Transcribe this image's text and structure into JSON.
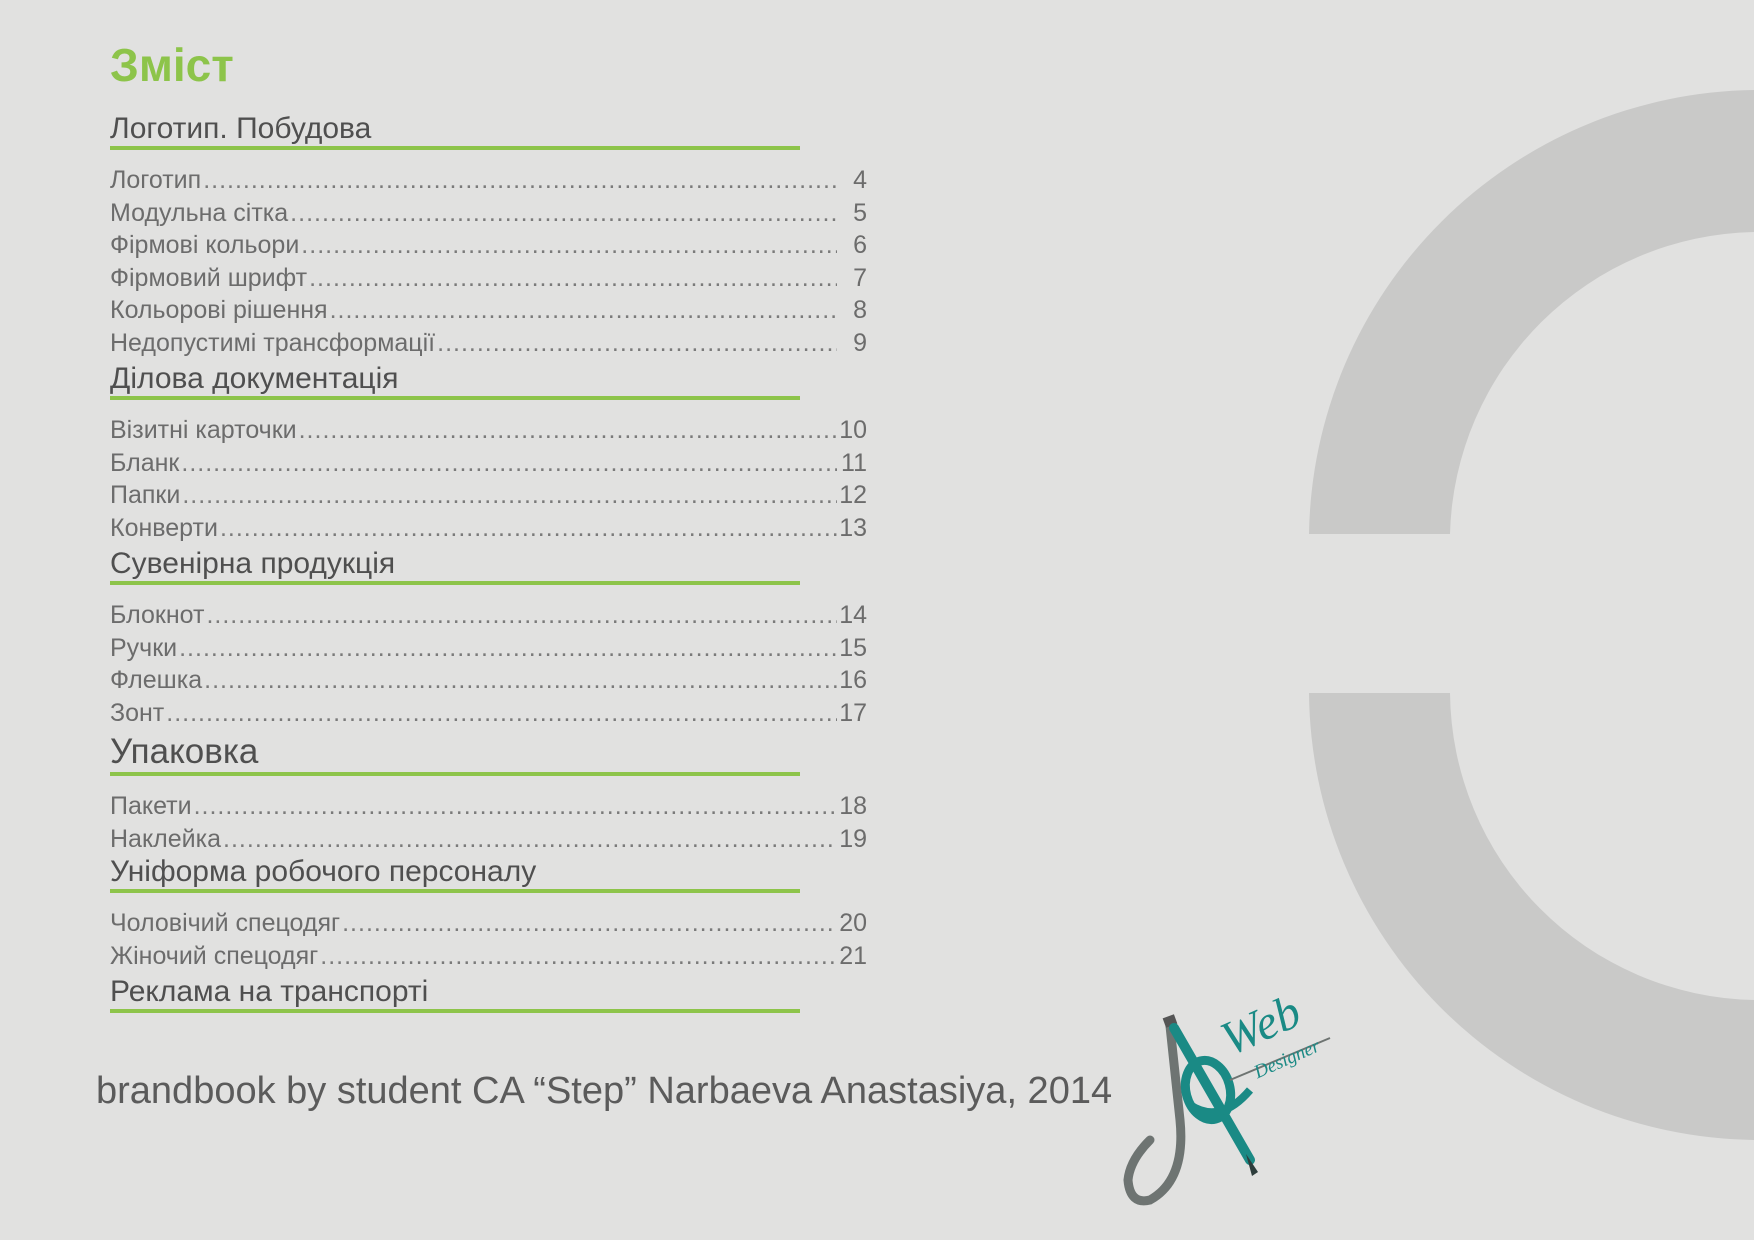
{
  "title": "Зміст",
  "sections": [
    {
      "heading": "Логотип. Побудова",
      "entries": [
        {
          "label": "Логотип",
          "page": "4"
        },
        {
          "label": "Модульна сітка",
          "page": "5"
        },
        {
          "label": "Фірмові кольори",
          "page": "6"
        },
        {
          "label": "Фірмовий шрифт",
          "page": "7"
        },
        {
          "label": "Кольорові рішення",
          "page": "8"
        },
        {
          "label": "Недопустимі трансформації",
          "page": "9"
        }
      ]
    },
    {
      "heading": "Ділова документація",
      "entries": [
        {
          "label": "Візитні карточки",
          "page": "10"
        },
        {
          "label": "Бланк",
          "page": "11"
        },
        {
          "label": "Папки",
          "page": "12"
        },
        {
          "label": "Конверти",
          "page": "13"
        }
      ]
    },
    {
      "heading": "Сувенірна продукція",
      "entries": [
        {
          "label": "Блокнот",
          "page": "14"
        },
        {
          "label": "Ручки",
          "page": "15"
        },
        {
          "label": "Флешка",
          "page": "16"
        },
        {
          "label": "Зонт",
          "page": "17"
        }
      ]
    },
    {
      "heading": "Упаковка",
      "entries": [
        {
          "label": "Пакети",
          "page": "18"
        },
        {
          "label": "Наклейка",
          "page": "19"
        }
      ]
    },
    {
      "heading": "Уніформа робочого персоналу",
      "entries": [
        {
          "label": "Чоловічий спецодяг",
          "page": "20"
        },
        {
          "label": "Жіночий спецодяг",
          "page": "21"
        }
      ]
    },
    {
      "heading": "Реклама на транспорті",
      "entries": []
    }
  ],
  "footer": "brandbook by student CA “Step” Narbaeva Anastasiya, 2014",
  "logo": {
    "word_web": "Web",
    "word_designer": "Designer"
  },
  "colors": {
    "accent": "#8dc44a",
    "background": "#e1e1e0",
    "ring": "#c9c9c8",
    "logo_teal": "#1a8a85",
    "logo_gray": "#6e7472"
  }
}
